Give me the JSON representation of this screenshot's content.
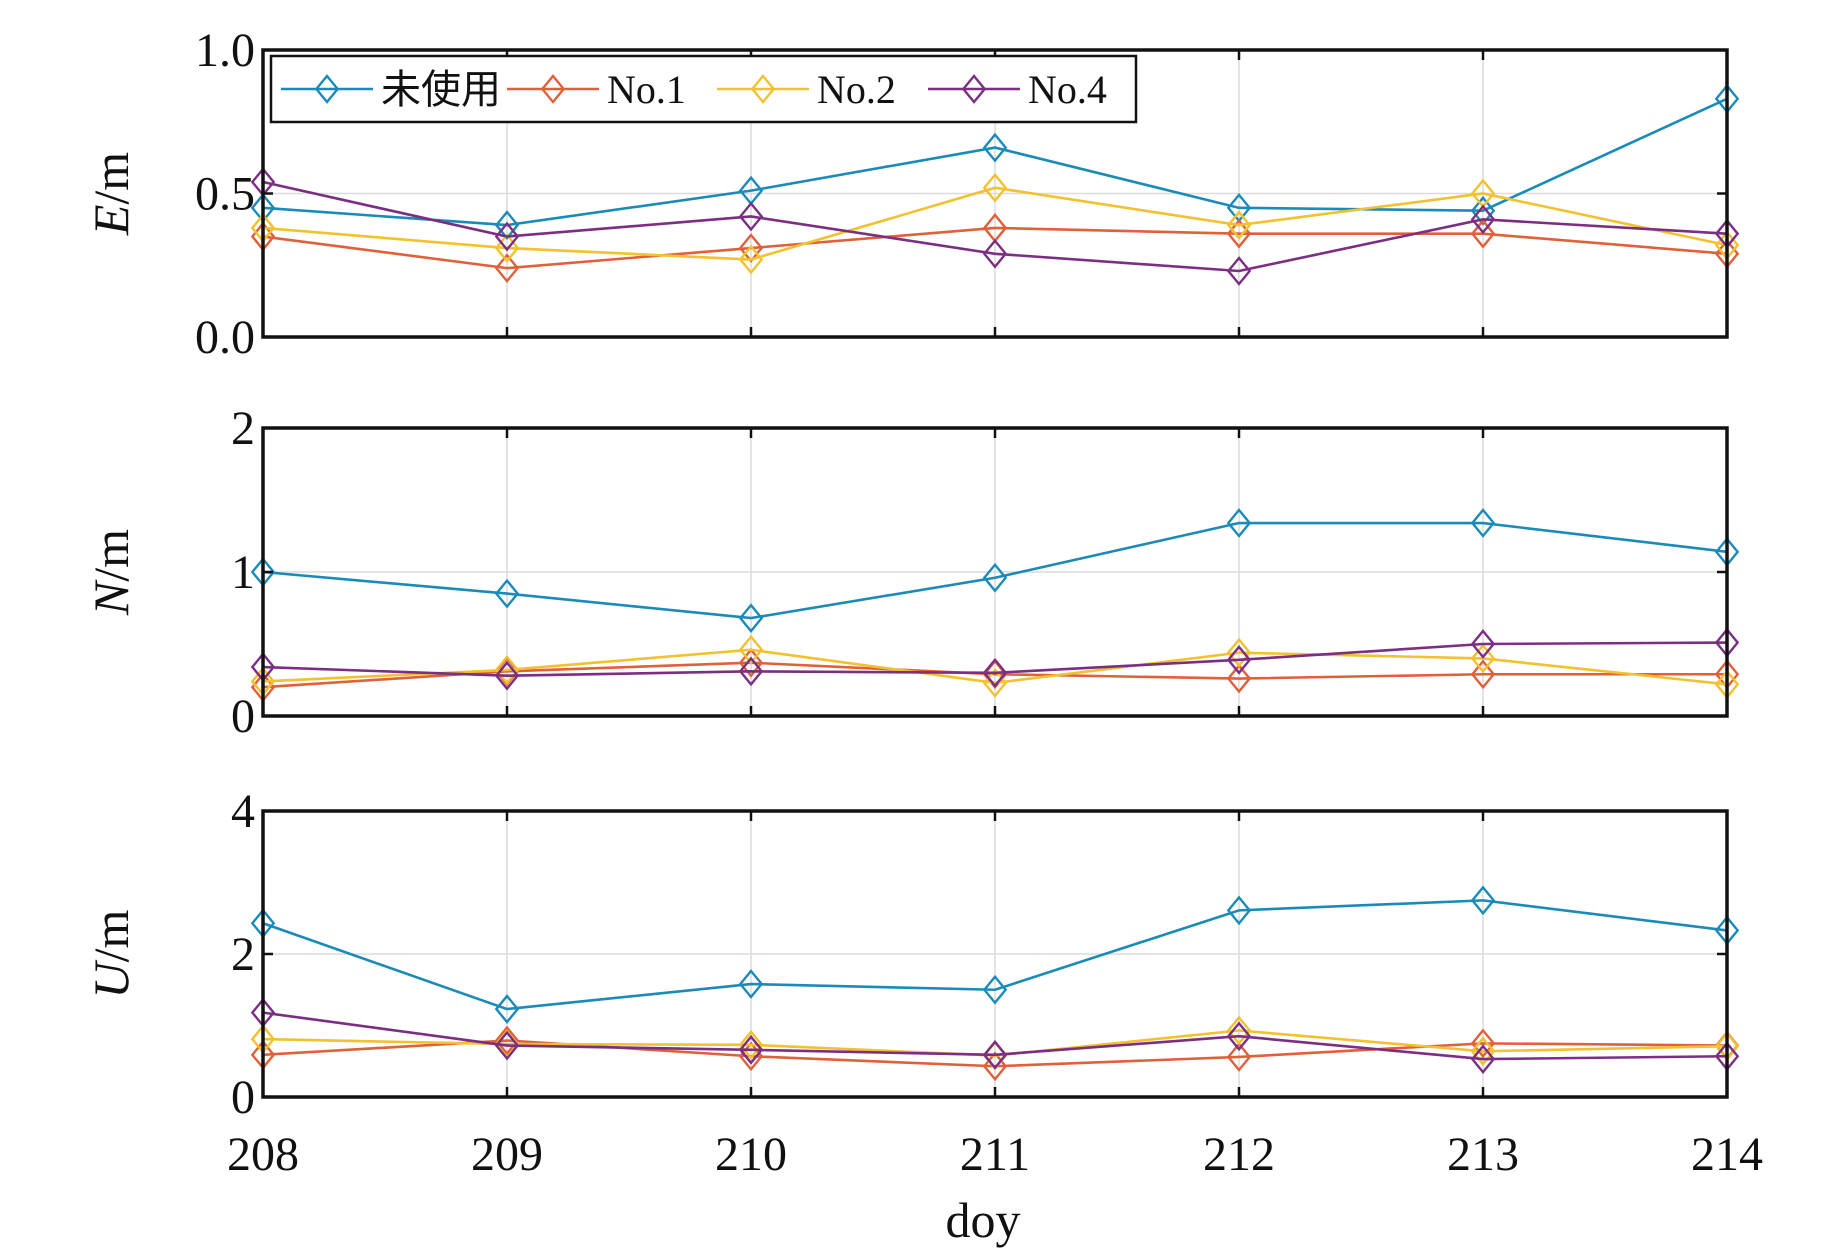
{
  "chart_data": {
    "type": "line",
    "xlabel": "doy",
    "x": [
      208,
      209,
      210,
      211,
      212,
      213,
      214
    ],
    "xlim": [
      208,
      214
    ],
    "x_tick_labels": [
      "208",
      "209",
      "210",
      "211",
      "212",
      "213",
      "214"
    ],
    "legend": {
      "position": "top-left",
      "entries": [
        "未使用",
        "No.1",
        "No.2",
        "No.4"
      ]
    },
    "series_colors": {
      "未使用": "#1a8bb8",
      "No.1": "#e0603a",
      "No.2": "#f2c12e",
      "No.4": "#7b2e82"
    },
    "panels": [
      {
        "ylabel_italic": "E",
        "ylabel_unit": "/m",
        "ylim": [
          0,
          1
        ],
        "yticks": [
          0,
          0.5,
          1
        ],
        "ytick_labels": [
          "0.0",
          "0.5",
          "1.0"
        ],
        "grid": true,
        "series": [
          {
            "name": "未使用",
            "values": [
              0.45,
              0.39,
              0.51,
              0.66,
              0.45,
              0.44,
              0.83
            ]
          },
          {
            "name": "No.1",
            "values": [
              0.35,
              0.24,
              0.31,
              0.38,
              0.36,
              0.36,
              0.29
            ]
          },
          {
            "name": "No.2",
            "values": [
              0.38,
              0.31,
              0.27,
              0.52,
              0.39,
              0.5,
              0.32
            ]
          },
          {
            "name": "No.4",
            "values": [
              0.54,
              0.35,
              0.42,
              0.29,
              0.23,
              0.41,
              0.36
            ]
          }
        ]
      },
      {
        "ylabel_italic": "N",
        "ylabel_unit": "/m",
        "ylim": [
          0,
          2
        ],
        "yticks": [
          0,
          1,
          2
        ],
        "ytick_labels": [
          "0",
          "1",
          "2"
        ],
        "grid": true,
        "series": [
          {
            "name": "未使用",
            "values": [
              1.0,
              0.85,
              0.68,
              0.96,
              1.34,
              1.34,
              1.14
            ]
          },
          {
            "name": "No.1",
            "values": [
              0.2,
              0.31,
              0.37,
              0.29,
              0.26,
              0.29,
              0.29
            ]
          },
          {
            "name": "No.2",
            "values": [
              0.24,
              0.32,
              0.46,
              0.23,
              0.44,
              0.4,
              0.22
            ]
          },
          {
            "name": "No.4",
            "values": [
              0.34,
              0.28,
              0.31,
              0.3,
              0.39,
              0.5,
              0.51
            ]
          }
        ]
      },
      {
        "ylabel_italic": "U",
        "ylabel_unit": "/m",
        "ylim": [
          0,
          4
        ],
        "yticks": [
          0,
          2,
          4
        ],
        "ytick_labels": [
          "0",
          "2",
          "4"
        ],
        "grid": true,
        "series": [
          {
            "name": "未使用",
            "values": [
              2.43,
              1.23,
              1.58,
              1.5,
              2.61,
              2.75,
              2.33
            ]
          },
          {
            "name": "No.1",
            "values": [
              0.59,
              0.79,
              0.57,
              0.43,
              0.56,
              0.75,
              0.72
            ]
          },
          {
            "name": "No.2",
            "values": [
              0.81,
              0.74,
              0.73,
              0.58,
              0.93,
              0.64,
              0.71
            ]
          },
          {
            "name": "No.4",
            "values": [
              1.18,
              0.72,
              0.66,
              0.59,
              0.85,
              0.53,
              0.57
            ]
          }
        ]
      }
    ]
  }
}
